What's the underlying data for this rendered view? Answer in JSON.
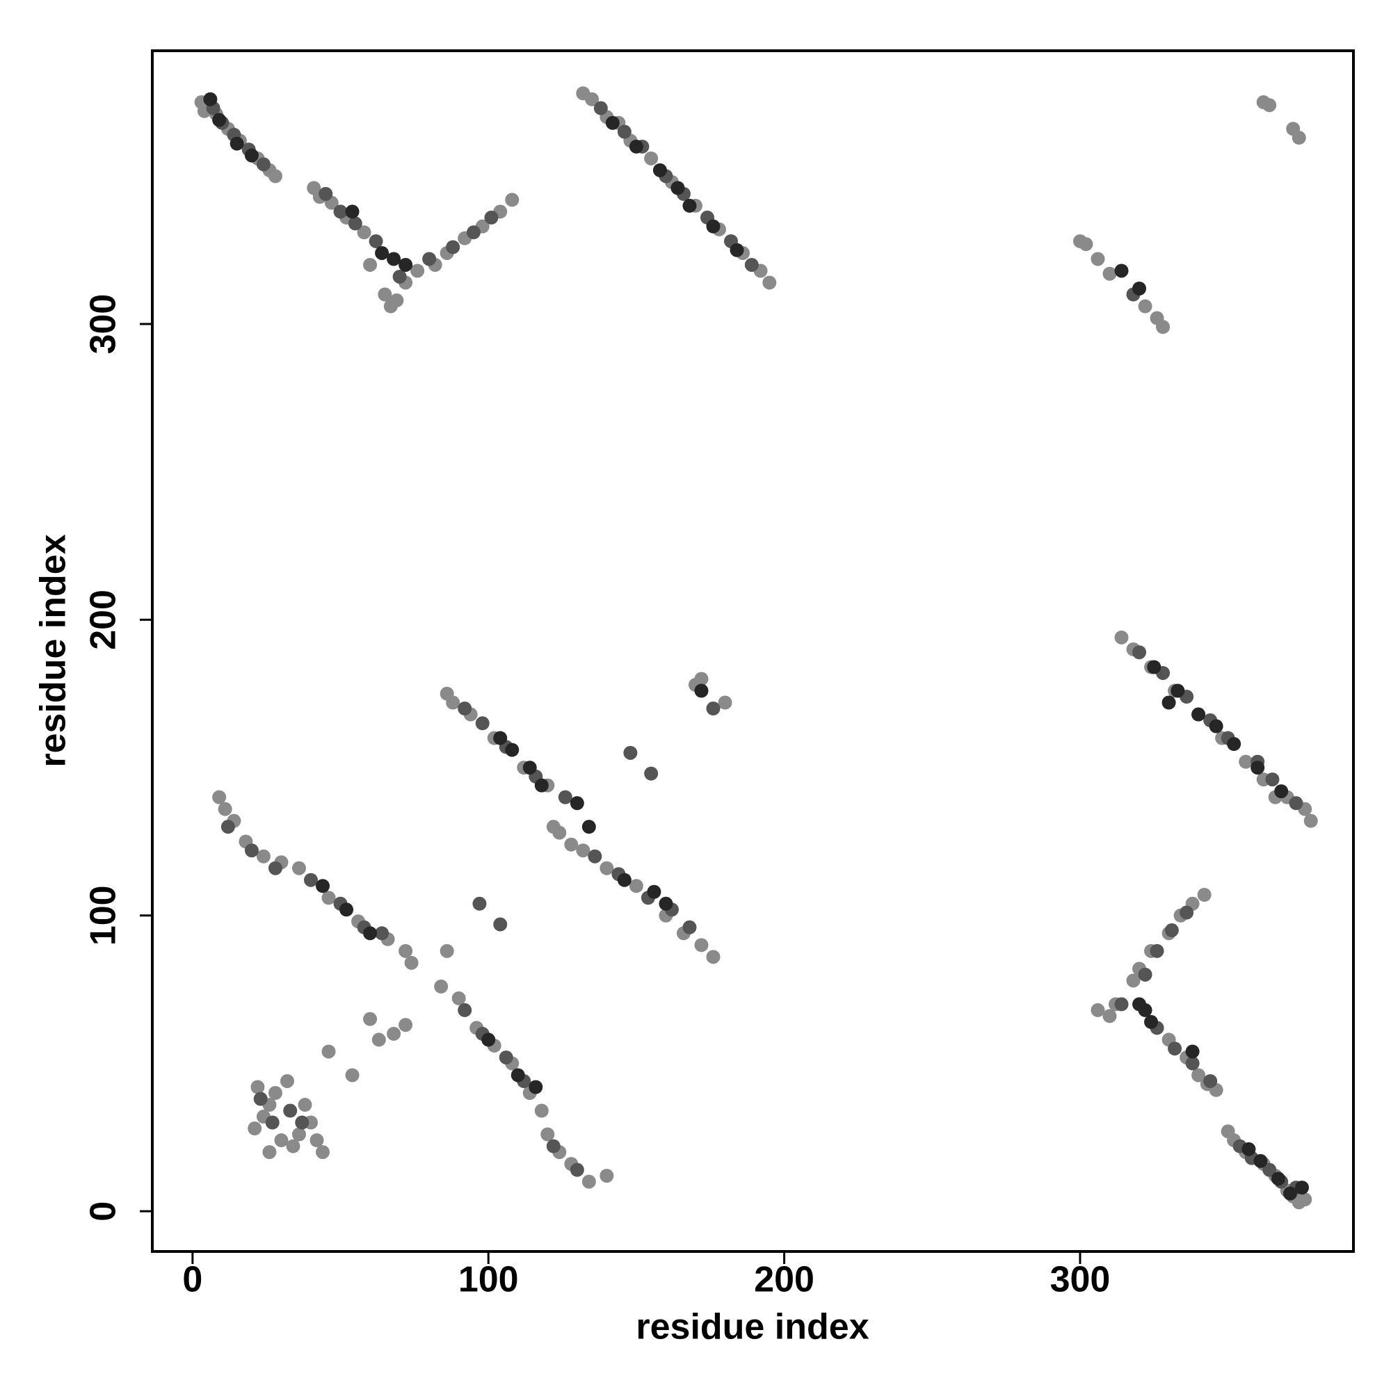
{
  "chart_data": {
    "type": "scatter",
    "xlabel": "residue index",
    "ylabel": "residue index",
    "xlim": [
      -13.6,
      392.4
    ],
    "ylim": [
      -13.6,
      392.4
    ],
    "xticks": [
      0,
      100,
      200,
      300
    ],
    "yticks": [
      0,
      100,
      200,
      300
    ],
    "grid": false,
    "series": [
      {
        "color": "#8a8a8a",
        "x": [
          3,
          5,
          4,
          8,
          12,
          16,
          22,
          26,
          28,
          350,
          352,
          356,
          362,
          366,
          370,
          372,
          374,
          376,
          41,
          43,
          47,
          52,
          58,
          65,
          67,
          69,
          72,
          76,
          82,
          86,
          92,
          98,
          104,
          108,
          60,
          346,
          343,
          340,
          336,
          330,
          310,
          306,
          312,
          318,
          320,
          324,
          330,
          334,
          338,
          342,
          132,
          135,
          140,
          148,
          155,
          162,
          170,
          178,
          186,
          192,
          195,
          144,
          378,
          376,
          370,
          362,
          356,
          348,
          340,
          332,
          324,
          318,
          314,
          366,
          300,
          302,
          306,
          310,
          322,
          326,
          328,
          362,
          364,
          372,
          374,
          9,
          11,
          14,
          18,
          24,
          30,
          36,
          46,
          56,
          66,
          72,
          74,
          84,
          86,
          90,
          96,
          102,
          108,
          114,
          118,
          120,
          124,
          128,
          134,
          140,
          60,
          63,
          68,
          72,
          86,
          88,
          94,
          102,
          112,
          120,
          122,
          124,
          128,
          132,
          140,
          150,
          160,
          166,
          172,
          176,
          170,
          172,
          180,
          21,
          24,
          26,
          28,
          22,
          30,
          34,
          36,
          40,
          42,
          44,
          26,
          32,
          38,
          46,
          54
        ],
        "y": [
          375,
          374,
          372,
          371,
          366,
          362,
          356,
          352,
          350,
          27,
          24,
          20,
          16,
          12,
          7,
          5,
          3,
          4,
          346,
          343,
          341,
          336,
          331,
          310,
          306,
          308,
          314,
          318,
          320,
          324,
          329,
          333,
          338,
          342,
          320,
          41,
          43,
          46,
          52,
          58,
          66,
          68,
          70,
          78,
          82,
          88,
          94,
          100,
          104,
          107,
          378,
          376,
          370,
          362,
          356,
          348,
          340,
          332,
          324,
          318,
          314,
          368,
          132,
          136,
          140,
          146,
          152,
          160,
          168,
          176,
          184,
          190,
          194,
          140,
          328,
          327,
          322,
          317,
          306,
          302,
          299,
          375,
          374,
          366,
          363,
          140,
          136,
          132,
          125,
          120,
          118,
          116,
          106,
          98,
          92,
          88,
          84,
          76,
          88,
          72,
          62,
          56,
          50,
          40,
          34,
          26,
          20,
          16,
          10,
          12,
          65,
          58,
          60,
          63,
          175,
          172,
          168,
          160,
          150,
          144,
          130,
          128,
          124,
          122,
          116,
          110,
          100,
          94,
          90,
          86,
          178,
          180,
          172,
          28,
          32,
          36,
          40,
          42,
          24,
          22,
          26,
          30,
          24,
          20,
          20,
          44,
          36,
          54,
          46
        ]
      },
      {
        "color": "#555555",
        "x": [
          7,
          10,
          14,
          19,
          24,
          354,
          358,
          364,
          368,
          373,
          45,
          50,
          55,
          62,
          70,
          80,
          88,
          95,
          101,
          344,
          338,
          332,
          326,
          314,
          322,
          326,
          331,
          336,
          138,
          146,
          152,
          160,
          166,
          174,
          182,
          189,
          373,
          365,
          360,
          350,
          344,
          336,
          328,
          320,
          318,
          12,
          20,
          28,
          40,
          50,
          58,
          64,
          92,
          98,
          106,
          112,
          122,
          130,
          92,
          98,
          106,
          116,
          126,
          136,
          144,
          154,
          162,
          168,
          176,
          27,
          33,
          37,
          23,
          148,
          155,
          97,
          104
        ],
        "y": [
          373,
          368,
          364,
          359,
          354,
          22,
          18,
          14,
          10,
          8,
          344,
          338,
          334,
          328,
          316,
          322,
          326,
          331,
          336,
          44,
          50,
          55,
          62,
          70,
          80,
          88,
          95,
          101,
          373,
          365,
          360,
          350,
          344,
          336,
          328,
          320,
          138,
          146,
          152,
          160,
          166,
          174,
          182,
          189,
          310,
          130,
          122,
          116,
          112,
          104,
          96,
          94,
          68,
          60,
          52,
          44,
          22,
          14,
          170,
          165,
          157,
          147,
          140,
          120,
          114,
          106,
          102,
          96,
          170,
          30,
          34,
          30,
          38,
          155,
          148,
          104,
          97
        ]
      },
      {
        "color": "#262626",
        "x": [
          6,
          9,
          15,
          20,
          357,
          361,
          367,
          371,
          375,
          54,
          64,
          68,
          72,
          338,
          324,
          320,
          322,
          142,
          150,
          158,
          164,
          168,
          176,
          184,
          368,
          360,
          352,
          346,
          340,
          333,
          325,
          330,
          314,
          320,
          44,
          52,
          60,
          100,
          110,
          116,
          104,
          108,
          114,
          118,
          130,
          134,
          146,
          156,
          160,
          172
        ],
        "y": [
          376,
          369,
          361,
          357,
          21,
          17,
          11,
          6,
          8,
          338,
          324,
          322,
          320,
          54,
          64,
          70,
          68,
          368,
          360,
          352,
          346,
          340,
          333,
          325,
          142,
          150,
          158,
          164,
          168,
          176,
          184,
          172,
          318,
          312,
          110,
          102,
          94,
          58,
          46,
          42,
          160,
          156,
          150,
          144,
          138,
          130,
          112,
          108,
          104,
          176
        ]
      }
    ]
  }
}
